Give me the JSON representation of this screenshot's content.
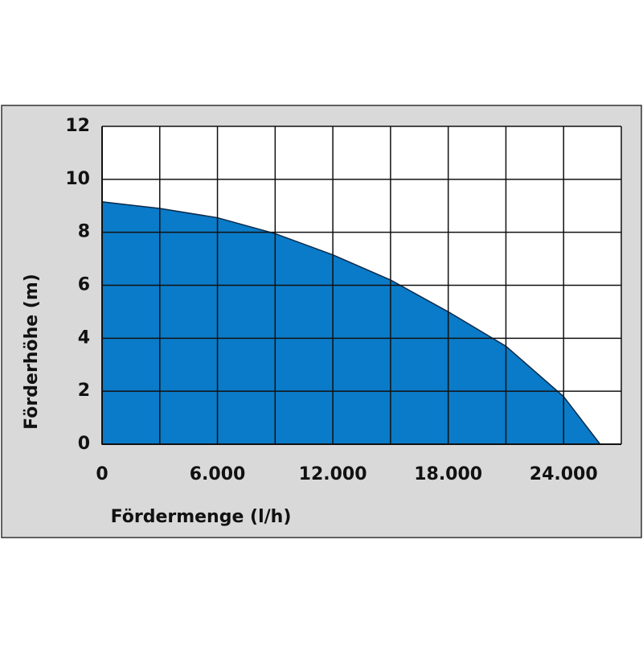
{
  "chart_data": {
    "type": "area",
    "x_label": "Fördermenge (l/h)",
    "y_label": "Förderhöhe (m)",
    "x": [
      0,
      3000,
      6000,
      9000,
      12000,
      15000,
      18000,
      21000,
      24000,
      25900
    ],
    "values": [
      9.15,
      8.9,
      8.55,
      7.95,
      7.15,
      6.2,
      5.0,
      3.7,
      1.8,
      0
    ],
    "color": "#0a7bc8",
    "xlim": [
      0,
      27000
    ],
    "xticks": [
      0,
      {
        "value": 6000,
        "label": "6.000"
      },
      {
        "value": 12000,
        "label": "12.000"
      },
      {
        "value": 18000,
        "label": "18.000"
      },
      {
        "value": 24000,
        "label": "24.000"
      }
    ],
    "x_minor_grid": [
      3000,
      9000,
      15000,
      21000,
      27000
    ],
    "ylim": [
      0,
      12
    ],
    "yticks": [
      0,
      2,
      4,
      6,
      8,
      10,
      12
    ],
    "grid": true
  }
}
